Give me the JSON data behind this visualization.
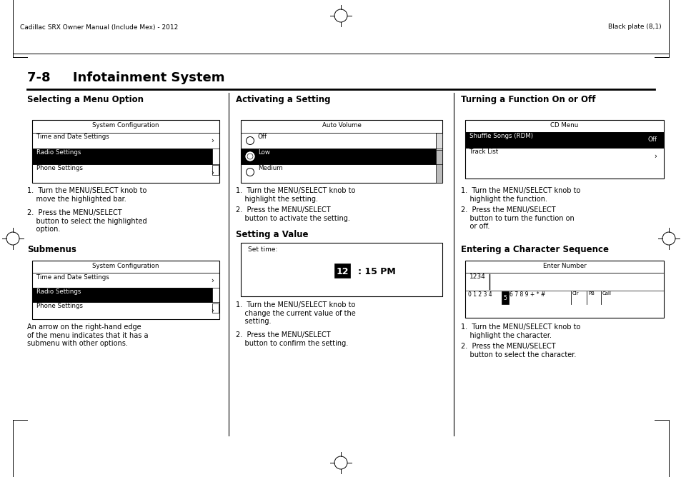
{
  "page_width": 9.54,
  "page_height": 6.68,
  "dpi": 100,
  "bg_color": "#ffffff",
  "header_left": "Cadillac SRX Owner Manual (Include Mex) - 2012",
  "header_right": "Black plate (8,1)",
  "title": "7-8     Infotainment System",
  "col1_heading": "Selecting a Menu Option",
  "col2_heading": "Activating a Setting",
  "col3_heading": "Turning a Function On or Off",
  "subheading1": "Submenus",
  "subheading2": "Setting a Value",
  "subheading3": "Entering a Character Sequence",
  "col1_text3": "An arrow on the right-hand edge\nof the menu indicates that it has a\nsubmenu with other options."
}
